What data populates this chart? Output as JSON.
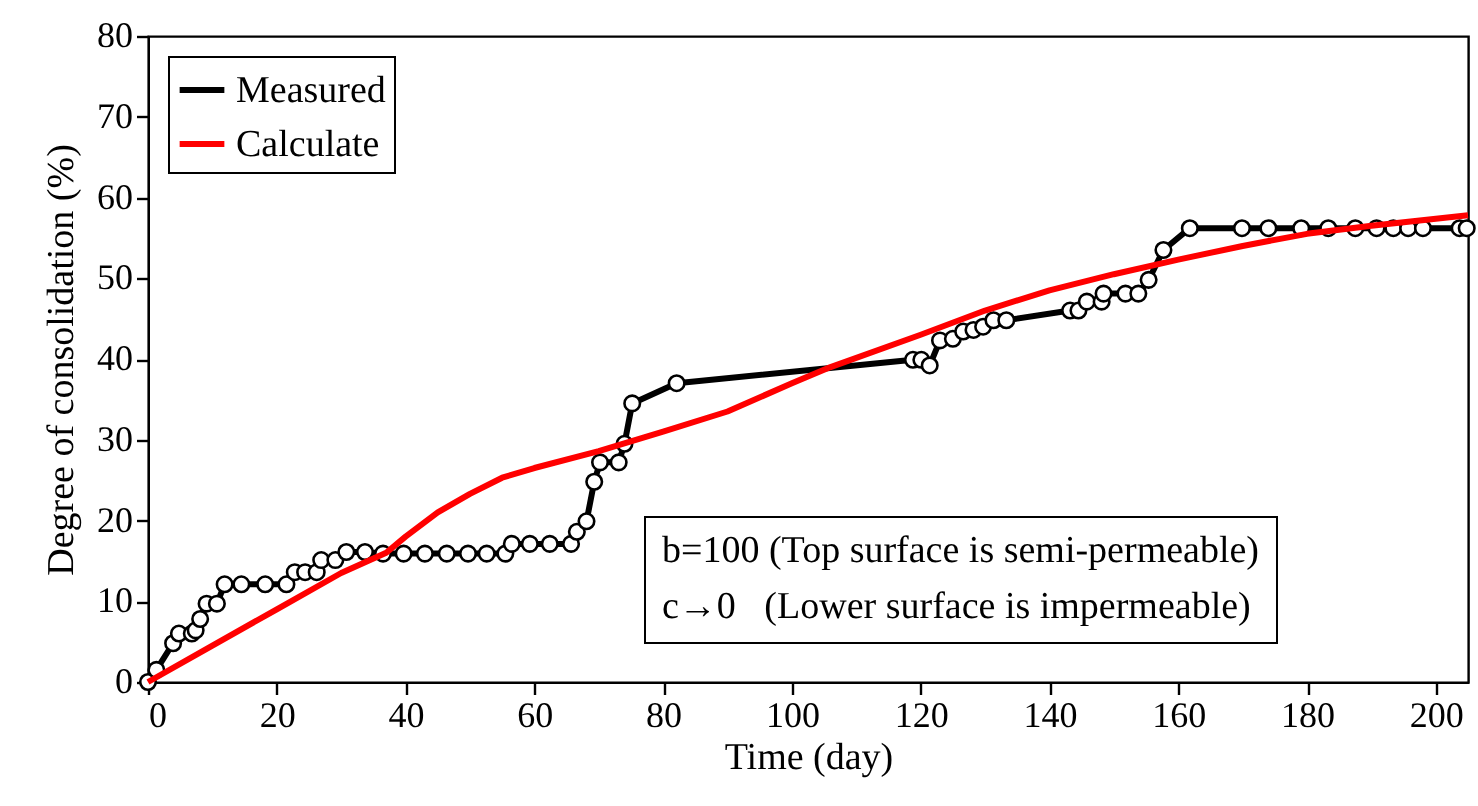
{
  "chart_data": {
    "type": "line",
    "xlabel": "Time (day)",
    "ylabel": "Degree of consolidation (%)",
    "xlim": [
      0,
      205
    ],
    "xticks": [
      0,
      20,
      40,
      60,
      80,
      100,
      120,
      140,
      160,
      180,
      200
    ],
    "ylim": [
      0,
      80
    ],
    "yticks": [
      0,
      10,
      20,
      30,
      40,
      50,
      60,
      70,
      80
    ],
    "grid": false,
    "legend": "top left",
    "line_style": "solid",
    "annotations": [
      "b=100 (Top surface is semi-permeable)",
      "c→0   (Lower surface is impermeable)"
    ],
    "series": [
      {
        "name": "Measured",
        "color": "#000000",
        "marker": "circle",
        "x": [
          0,
          1.3,
          3.9,
          4.8,
          6.8,
          7.4,
          8.1,
          9.1,
          10.7,
          11.9,
          14.5,
          18.2,
          21.5,
          22.8,
          24.4,
          26.2,
          26.9,
          29.1,
          30.8,
          33.7,
          36.5,
          39.7,
          43,
          46.4,
          49.7,
          52.6,
          55.5,
          56.5,
          59.3,
          62.4,
          65.7,
          66.6,
          68.1,
          69.3,
          70.2,
          73.1,
          74,
          75.2,
          82.1,
          118.8,
          120.1,
          121.4,
          123,
          125,
          126.6,
          128.2,
          129.7,
          131.3,
          133.3,
          143.2,
          144.5,
          145.8,
          148.1,
          148.4,
          151.8,
          153.8,
          155.4,
          157.7,
          161.8,
          169.9,
          174,
          179.1,
          183.3,
          187.5,
          190.8,
          193.4,
          195.7,
          198,
          203.7,
          204.8
        ],
        "values": [
          0,
          1.5,
          4.8,
          6,
          6,
          6.4,
          7.8,
          9.7,
          9.7,
          12.1,
          12.1,
          12.1,
          12.1,
          13.6,
          13.6,
          13.6,
          15.1,
          15.1,
          16.1,
          16.1,
          15.9,
          15.9,
          15.9,
          15.9,
          15.9,
          15.9,
          15.9,
          17.1,
          17.1,
          17.1,
          17.1,
          18.6,
          19.9,
          24.8,
          27.2,
          27.2,
          29.5,
          34.5,
          37,
          39.9,
          39.9,
          39.2,
          42.3,
          42.5,
          43.4,
          43.6,
          44,
          44.8,
          44.8,
          46,
          46,
          47.1,
          47.1,
          48.1,
          48.1,
          48.1,
          49.8,
          53.5,
          56.2,
          56.2,
          56.2,
          56.2,
          56.2,
          56.2,
          56.2,
          56.2,
          56.2,
          56.2,
          56.2,
          56.2
        ]
      },
      {
        "name": "Calculate",
        "color": "#ff0000",
        "marker": "none",
        "x": [
          0,
          10,
          20,
          30,
          37,
          40,
          45,
          50,
          55,
          60,
          70,
          80,
          90,
          100,
          106,
          120,
          130,
          140,
          150,
          160,
          170,
          180,
          190,
          205
        ],
        "values": [
          0,
          4.5,
          9,
          13.5,
          16,
          18,
          21,
          23.3,
          25.3,
          26.5,
          28.6,
          31,
          33.5,
          37,
          39,
          43,
          46,
          48.5,
          50.5,
          52.3,
          54,
          55.5,
          56.5,
          57.8
        ]
      }
    ]
  }
}
